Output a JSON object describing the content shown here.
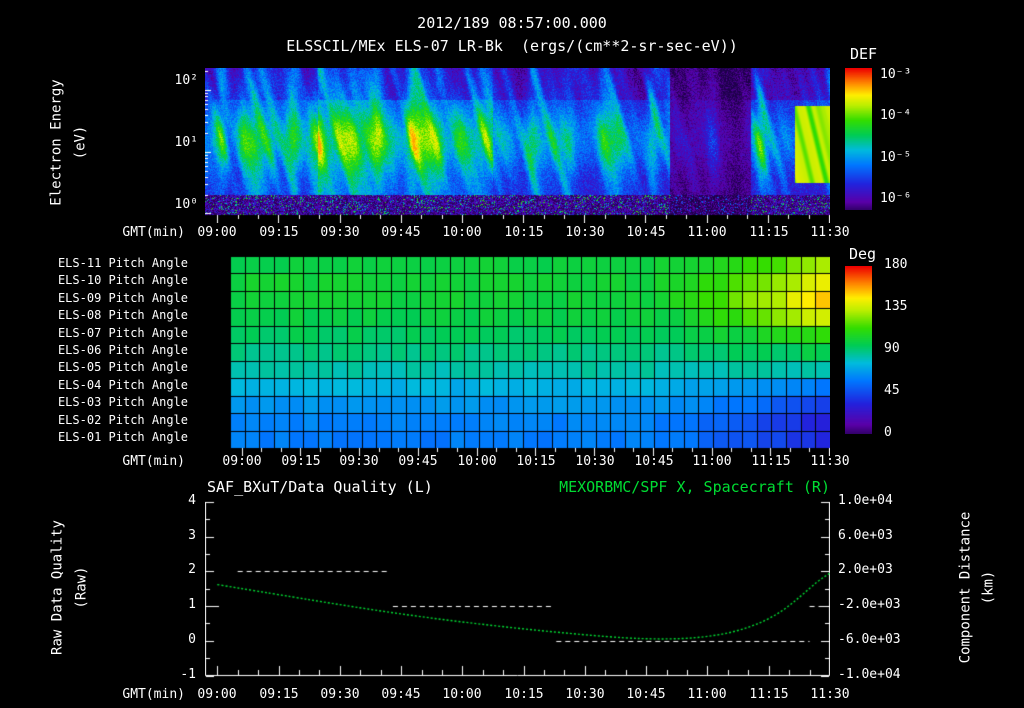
{
  "header": {
    "timestamp": "2012/189 08:57:00.000",
    "title": "ELSSCIL/MEx ELS-07 LR-Bk",
    "units": "(ergs/(cm**2-sr-sec-eV))"
  },
  "colors": {
    "background": "#000000",
    "foreground": "#ffffff",
    "green": "#00dd33"
  },
  "time_axis": {
    "label": "GMT(min)",
    "ticks": [
      "09:00",
      "09:15",
      "09:30",
      "09:45",
      "10:00",
      "10:15",
      "10:30",
      "10:45",
      "11:00",
      "11:15",
      "11:30"
    ]
  },
  "spectrogram_panel": {
    "ylabel_line1": "Electron Energy",
    "ylabel_line2": "(eV)"
  },
  "bottom_panel": {
    "title_left": "SAF_BXuT/Data Quality (L)",
    "title_right": "MEXORBMC/SPF X, Spacecraft (R)",
    "ylabel_left_line1": "Raw Data Quality",
    "ylabel_left_line2": "(Raw)",
    "ylabel_right_line1": "Component Distance",
    "ylabel_right_line2": "(km)",
    "yticks_left": [
      "4",
      "3",
      "2",
      "1",
      "0",
      "-1"
    ],
    "yticks_right": [
      "1.0e+04",
      "6.0e+03",
      "2.0e+03",
      "-2.0e+03",
      "-6.0e+03",
      "-1.0e+04"
    ]
  },
  "chart_data": [
    {
      "type": "heatmap",
      "name": "electron-energy-spectrogram",
      "title": "ELSSCIL/MEx ELS-07 LR-Bk",
      "units": "ergs/(cm**2-sr-sec-eV)",
      "x_start": "08:57",
      "x_end": "11:33",
      "x_tick_labels": [
        "09:00",
        "09:15",
        "09:30",
        "09:45",
        "10:00",
        "10:15",
        "10:30",
        "10:45",
        "11:00",
        "11:15",
        "11:30"
      ],
      "ylabel": "Electron Energy (eV)",
      "yscale": "log",
      "y_decades": [
        "10⁰",
        "10¹",
        "10²"
      ],
      "colorbar": {
        "title": "DEF",
        "scale": "log",
        "tick_labels": [
          "10⁻³",
          "10⁻⁴",
          "10⁻⁵",
          "10⁻⁶"
        ],
        "top_color": "red",
        "bottom_color": "violet"
      },
      "features": {
        "main_band_energy_eV": [
          8,
          60
        ],
        "bright_streak_interval_gmt": [
          "09:25",
          "10:10"
        ],
        "dark_interval_gmt": [
          "10:52",
          "11:15"
        ],
        "right_bright_interval_gmt": [
          "11:22",
          "11:30"
        ],
        "low_energy_speckle_below_eV": 3
      }
    },
    {
      "type": "heatmap",
      "name": "pitch-angle-panel",
      "value_units": "deg",
      "value_range": [
        0,
        180
      ],
      "transition_start_gmt": "10:45",
      "colorbar": {
        "title": "Deg",
        "tick_labels": [
          "180",
          "135",
          "90",
          "45",
          "0"
        ]
      },
      "rows": [
        {
          "label": "ELS-11 Pitch Angle",
          "start": 99,
          "end": 128
        },
        {
          "label": "ELS-10 Pitch Angle",
          "start": 101,
          "end": 140
        },
        {
          "label": "ELS-09 Pitch Angle",
          "start": 101,
          "end": 150
        },
        {
          "label": "ELS-08 Pitch Angle",
          "start": 98,
          "end": 138
        },
        {
          "label": "ELS-07 Pitch Angle",
          "start": 94,
          "end": 112
        },
        {
          "label": "ELS-06 Pitch Angle",
          "start": 89,
          "end": 97
        },
        {
          "label": "ELS-05 Pitch Angle",
          "start": 83,
          "end": 82
        },
        {
          "label": "ELS-04 Pitch Angle",
          "start": 73,
          "end": 58
        },
        {
          "label": "ELS-03 Pitch Angle",
          "start": 65,
          "end": 42
        },
        {
          "label": "ELS-02 Pitch Angle",
          "start": 60,
          "end": 30
        },
        {
          "label": "ELS-01 Pitch Angle",
          "start": 58,
          "end": 34
        }
      ]
    },
    {
      "type": "line",
      "name": "quality-and-spacecraft-distance",
      "x_tick_labels": [
        "09:00",
        "09:15",
        "09:30",
        "09:45",
        "10:00",
        "10:15",
        "10:30",
        "10:45",
        "11:00",
        "11:15",
        "11:30"
      ],
      "t_minutes_from": "08:57",
      "t_range_min": [
        0,
        153
      ],
      "left_axis": {
        "label": "Raw Data Quality (Raw)",
        "range": [
          -1,
          4
        ],
        "ticks": [
          4,
          3,
          2,
          1,
          0,
          -1
        ]
      },
      "right_axis": {
        "label": "Component Distance (km)",
        "range": [
          -10000,
          10000
        ],
        "ticks": [
          10000,
          6000,
          2000,
          -2000,
          -6000,
          -10000
        ]
      },
      "series": [
        {
          "name": "SAF_BXuT/Data Quality (L)",
          "axis": "left",
          "style": "white-dashed",
          "segments": [
            {
              "value": 1,
              "t0": 0,
              "t1": 4
            },
            {
              "value": 2,
              "t0": 8,
              "t1": 45
            },
            {
              "value": 1,
              "t0": 46,
              "t1": 85
            },
            {
              "value": 0,
              "t0": 86,
              "t1": 148
            },
            {
              "value": 1,
              "t0": 148,
              "t1": 153
            }
          ]
        },
        {
          "name": "MEXORBMC/SPF X, Spacecraft (R)",
          "axis": "right",
          "style": "green-dotted",
          "t_min": [
            3,
            18,
            33,
            48,
            63,
            78,
            93,
            103,
            110,
            117,
            123,
            129,
            135,
            141,
            146,
            150,
            153
          ],
          "x_km": [
            480,
            -680,
            -1840,
            -2920,
            -3840,
            -4640,
            -5320,
            -5680,
            -5800,
            -5760,
            -5520,
            -5040,
            -4160,
            -2720,
            -800,
            880,
            1800
          ]
        }
      ]
    }
  ]
}
